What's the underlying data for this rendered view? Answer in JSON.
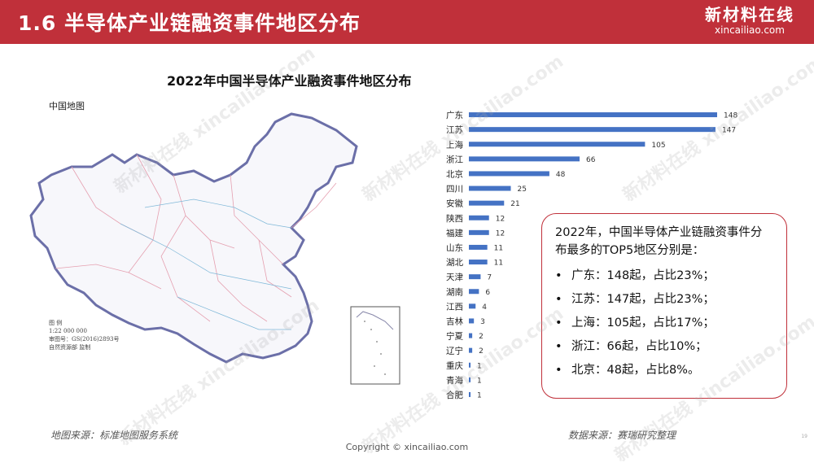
{
  "header": {
    "title": "1.6 半导体产业链融资事件地区分布"
  },
  "logo": {
    "cn": "新材料在线",
    "en": "xincailiao.com"
  },
  "map": {
    "label": "中国地图",
    "legend": [
      "图 例",
      "1:22 000 000",
      "审图号：GS(2016)2893号",
      "自然资源部 监制"
    ]
  },
  "chart_data": {
    "type": "bar",
    "orientation": "horizontal",
    "title": "2022年中国半导体产业融资事件地区分布",
    "categories": [
      "广东",
      "江苏",
      "上海",
      "浙江",
      "北京",
      "四川",
      "安徽",
      "陕西",
      "福建",
      "山东",
      "湖北",
      "天津",
      "湖南",
      "江西",
      "吉林",
      "宁夏",
      "辽宁",
      "重庆",
      "青海",
      "合肥"
    ],
    "values": [
      148,
      147,
      105,
      66,
      48,
      25,
      21,
      12,
      12,
      11,
      11,
      7,
      6,
      4,
      3,
      2,
      2,
      1,
      1,
      1
    ],
    "bar_color": "#4472c4",
    "xlim": [
      0,
      148
    ]
  },
  "callout": {
    "intro": "2022年，中国半导体产业链融资事件分布最多的TOP5地区分别是：",
    "bullet": "•",
    "items": [
      "广东：148起，占比23%；",
      "江苏：147起，占比23%；",
      "上海：105起，占比17%；",
      "浙江：66起，占比10%；",
      "北京：48起，占比8%。"
    ]
  },
  "footer": {
    "map_source": "地图来源：标准地图服务系统",
    "data_source": "数据来源：赛瑞研究整理",
    "copyright": "Copyright © xincailiao.com",
    "page": "19"
  },
  "watermark": {
    "cn": "新材料在线",
    "en": "xincailiao.com"
  },
  "colors": {
    "header": "#c0303a",
    "bar": "#4472c4",
    "callout_border": "#c0303a"
  }
}
